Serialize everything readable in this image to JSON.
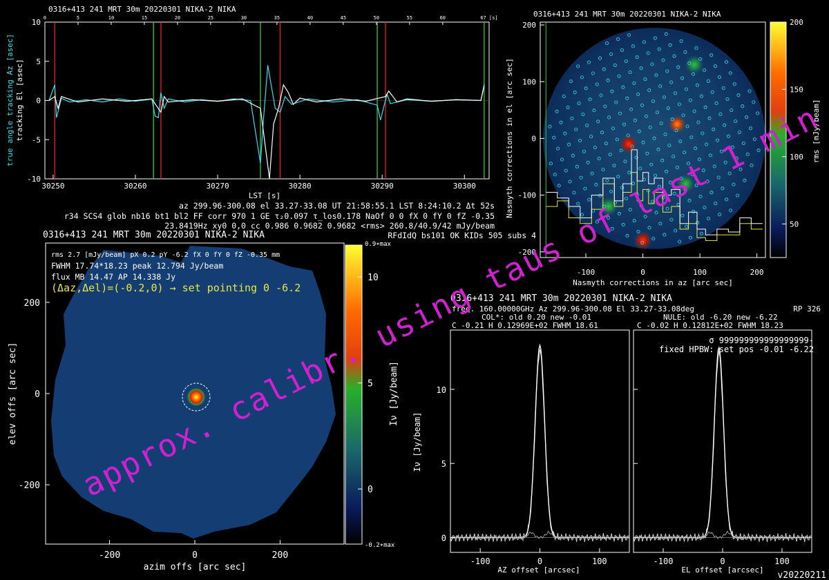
{
  "colors": {
    "background": "#000000",
    "text": "#ffffff",
    "cyan": "#33e0f0",
    "red": "#e82020",
    "green": "#33cc33",
    "yellow": "#e8e840",
    "magenta": "#d020d0",
    "map_blue": "#143e73"
  },
  "watermark": "approx. calibr. using taus of last 1 min",
  "version": "v20220211",
  "panel_tracking": {
    "title": "0316+413 241 MRT 30m  20220301 NIKA-2 NIKA",
    "ylabel_az": "true angle tracking Az [asec]",
    "ylabel_el": "tracking El [asec]",
    "xlabel": "LST [s]",
    "top_ticks": [
      "0",
      "5",
      "10",
      "15",
      "20",
      "25",
      "30",
      "35",
      "40",
      "45",
      "50",
      "55",
      "60",
      "67 [s]"
    ],
    "chart_data": {
      "type": "line",
      "xlim": [
        30249,
        30303
      ],
      "ylim": [
        -10,
        10
      ],
      "xticks": [
        30250,
        30260,
        30270,
        30280,
        30290,
        30300
      ],
      "yticks": [
        -10,
        -5,
        0,
        5,
        10
      ],
      "red_lines": [
        30250.2,
        30263.1,
        30277.6,
        30290.4
      ],
      "green_lines": [
        30262.2,
        30275.2,
        30289.4,
        30302.4
      ],
      "series": [
        {
          "name": "true angle tracking Az",
          "color": "cyan",
          "x": [
            30249.5,
            30250.2,
            30250.4,
            30250.7,
            30251,
            30252,
            30254,
            30256,
            30258,
            30260,
            30262,
            30262.4,
            30262.8,
            30263.1,
            30263.5,
            30264,
            30266,
            30268,
            30270,
            30272,
            30274,
            30275.2,
            30275.6,
            30276.1,
            30276.5,
            30277,
            30277.6,
            30278.2,
            30279,
            30281,
            30284,
            30287,
            30289.4,
            30289.8,
            30290.2,
            30290.6,
            30291,
            30293,
            30296,
            30299,
            30302,
            30302.4
          ],
          "y": [
            0,
            2,
            -2.2,
            -1,
            0.3,
            -0.2,
            0.1,
            -0.2,
            0.2,
            -0.1,
            0.2,
            -2,
            -2.2,
            1,
            -1,
            0.2,
            -0.2,
            0.1,
            -0.1,
            0.2,
            0,
            -8,
            -2,
            4.5,
            2,
            -1,
            -1.5,
            0.5,
            -0.5,
            0.2,
            -0.2,
            0.1,
            -0.6,
            -2.5,
            -0.8,
            0.8,
            -0.4,
            0.1,
            -0.1,
            0.1,
            0,
            1.8
          ]
        },
        {
          "name": "tracking El",
          "color": "white",
          "x": [
            30249.5,
            30250.2,
            30250.6,
            30251,
            30253,
            30256,
            30259,
            30262,
            30263.1,
            30263.5,
            30264,
            30267,
            30270,
            30273,
            30275.2,
            30276.3,
            30276.8,
            30277.4,
            30278,
            30278.6,
            30279.2,
            30280,
            30282,
            30285,
            30288,
            30290.4,
            30290.8,
            30291.3,
            30291.8,
            30293,
            30296,
            30299,
            30302,
            30302.4
          ],
          "y": [
            0,
            0.5,
            -1,
            0.5,
            -0.2,
            0.2,
            -0.1,
            0.2,
            -1.5,
            0.5,
            -0.2,
            0.1,
            -0.1,
            0.2,
            -1,
            -10,
            -3,
            -1,
            2,
            1,
            -0.5,
            0.3,
            -0.2,
            0.2,
            -0.1,
            0.5,
            1.2,
            0.5,
            -0.2,
            0.2,
            -0.1,
            0.1,
            0,
            2
          ]
        }
      ]
    }
  },
  "info_block": {
    "line1": "az 299.96-300.08 el 33.27-33.08 UT 21:58:55.1 LST 8:24:10.2 Δt 52s",
    "line2": "r34 SCS4 glob nb16 bt1 bl2 FF corr 970 1 GE τ₂0.097 τ_los0.178 NaOf 0 0 fX 0 fY 0 fZ -0.35",
    "line3": "23.8419Hz xy0 0,0 cc 0.986 0.9682 0.9682 <rms> 260.8/40.9/42 mJy/beam",
    "line4": "RFdIdQ bs101 OK KIDs 505 subs 4"
  },
  "panel_nasmyth": {
    "title": "0316+413 241 MRT 30m  20220301 NIKA-2 NIKA",
    "xlabel": "Nasmyth corrections in az [arc sec]",
    "ylabel": "Nasmyth corrections in el [arc sec]",
    "colorbar_label": "rms [mJy/beam]",
    "chart_data": {
      "type": "heatmap",
      "xlim": [
        -180,
        215
      ],
      "ylim": [
        -210,
        205
      ],
      "xticks": [
        -100,
        0,
        100,
        200
      ],
      "yticks": [
        -200,
        -100,
        0,
        100,
        200
      ],
      "colorbar_ticks": [
        50,
        100,
        150,
        200
      ],
      "colorbar_range": [
        25,
        200
      ],
      "disk_center": [
        20,
        0
      ],
      "disk_radius": 195,
      "hot_spots": [
        [
          -25,
          -10,
          "red"
        ],
        [
          60,
          25,
          "orange"
        ],
        [
          0,
          -180,
          "red"
        ],
        [
          75,
          -80,
          "green"
        ],
        [
          -60,
          -120,
          "green"
        ],
        [
          90,
          130,
          "green"
        ]
      ],
      "white_hist": {
        "x": [
          -170,
          -150,
          -130,
          -110,
          -90,
          -70,
          -50,
          -35,
          -20,
          -10,
          0,
          10,
          20,
          35,
          50,
          65,
          80,
          95,
          110,
          130,
          150,
          170,
          190
        ],
        "y": [
          -95,
          -105,
          -120,
          -140,
          -100,
          -70,
          -110,
          -80,
          -20,
          -75,
          -60,
          -80,
          -70,
          -100,
          -90,
          -150,
          -130,
          -160,
          -170,
          -160,
          -165,
          -140,
          -150
        ]
      },
      "yellow_hist": {
        "x": [
          -170,
          -150,
          -130,
          -110,
          -90,
          -70,
          -50,
          -35,
          -20,
          -10,
          0,
          10,
          20,
          35,
          50,
          65,
          80,
          95,
          110,
          130,
          150,
          170,
          190
        ],
        "y": [
          -120,
          -110,
          -140,
          -150,
          -125,
          -80,
          -120,
          -95,
          -60,
          -110,
          -90,
          -115,
          -95,
          -130,
          -120,
          -160,
          -150,
          -175,
          -180,
          -170,
          -170,
          -150,
          -160
        ]
      }
    }
  },
  "panel_map": {
    "title": "0316+413 241 MRT 30m  20220301 NIKA-2 NIKA",
    "info1": "rms 2.7 [mJy/beam] pX 0.2 pY -6.2 fX 0 fY 0 fZ -0.35 mm",
    "info2": "FWHM 17.74*18.23 peak 12.794 Jy/beam",
    "info3": "flux MB 14.47 AP 14.338 Jy",
    "pointing": "(Δaz,Δel)=(-0.2,0) → set pointing 0 -6.2",
    "xlabel": "azim offs [arc sec]",
    "ylabel": "elev offs [arc sec]",
    "colorbar_label": "Iν [Jy/beam]",
    "colorbar_top": "0.9∗max",
    "colorbar_bottom": "-0.2∗max",
    "chart_data": {
      "type": "heatmap",
      "xlim": [
        -350,
        350
      ],
      "ylim": [
        -330,
        330
      ],
      "xticks": [
        -200,
        0,
        200
      ],
      "yticks": [
        -200,
        0,
        200
      ],
      "colorbar_ticks": [
        0,
        5,
        10
      ],
      "colorbar_range": [
        -2.6,
        11.5
      ],
      "source": {
        "x": -0.2,
        "y": 0,
        "peak": 12.794
      },
      "aperture_radius": 28
    }
  },
  "panel_profiles": {
    "title": "0316+413 241 MRT 30m  20220301 NIKA-2 NIKA",
    "line1_left": "freq. 160.00000GHz  Az 299.96-300.08 El 33.27-33.08deg",
    "line1_right": "RP  326",
    "line2_left": "COL*: old   0.20 new   -0.01",
    "line2_right": "NULE: old   -6.20 new   -6.22",
    "line3_left": "C   -0.21     H  0.12969E+02  FWHM   18.61",
    "line3_right": "C   -0.02     H  0.12812E+02  FWHM   18.23",
    "annot1": "σ 999999999999999999-",
    "annot2": "fixed HPBW: set pos  -0.01  -6.22",
    "ylabel": "Iν [Jy/beam]",
    "xlabel_left": "AZ offset [arcsec]",
    "xlabel_right": "EL offset [arcsec]",
    "chart_data": {
      "type": "line",
      "xlim": [
        -150,
        150
      ],
      "ylim": [
        -1,
        14
      ],
      "xticks": [
        -100,
        0,
        100
      ],
      "yticks": [
        0,
        5,
        10
      ],
      "az_fit": {
        "center": -0.01,
        "height": 12.969,
        "fwhm": 18.61
      },
      "el_fit": {
        "center": -6.22,
        "height": 12.812,
        "fwhm": 18.23
      }
    }
  }
}
